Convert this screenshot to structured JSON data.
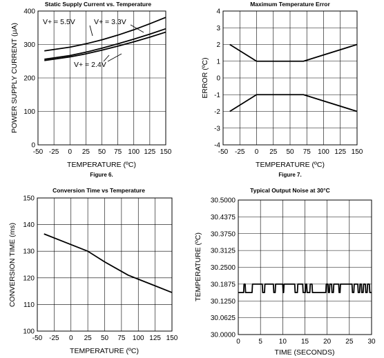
{
  "chart_data": [
    {
      "id": "static-supply-current",
      "type": "line",
      "title": "Static Supply Current vs. Temperature",
      "figure_label": "Figure 6.",
      "xlabel": "TEMPERATURE (ºC)",
      "ylabel": "POWER SUPPLY CURRENT (µA)",
      "xlim": [
        -50,
        150
      ],
      "ylim": [
        0,
        400
      ],
      "xticks": [
        -50,
        -25,
        0,
        25,
        50,
        75,
        100,
        125,
        150
      ],
      "yticks": [
        0,
        100,
        200,
        300,
        400
      ],
      "xtick_labels": [
        "-50",
        "-25",
        "0",
        "25",
        "50",
        "75",
        "100",
        "125",
        "150"
      ],
      "ytick_labels": [
        "0",
        "100",
        "200",
        "300",
        "400"
      ],
      "series": [
        {
          "name": "V+ = 5.5V",
          "x": [
            -40,
            0,
            25,
            50,
            75,
            100,
            125,
            150
          ],
          "y": [
            281,
            292,
            302,
            314,
            328,
            344,
            362,
            381
          ]
        },
        {
          "name": "V+ = 3.3V",
          "x": [
            -40,
            0,
            25,
            50,
            75,
            100,
            125,
            150
          ],
          "y": [
            256,
            267,
            277,
            289,
            302,
            316,
            331,
            347
          ]
        },
        {
          "name": "V+ = 2.4V",
          "x": [
            -40,
            0,
            25,
            50,
            75,
            100,
            125,
            150
          ],
          "y": [
            252,
            263,
            272,
            283,
            295,
            308,
            322,
            337
          ]
        }
      ],
      "grid": true
    },
    {
      "id": "max-temperature-error",
      "type": "line",
      "title": "Maximum Temperature Error",
      "figure_label": "Figure 7.",
      "xlabel": "TEMPERATURE (ºC)",
      "ylabel": "ERROR (ºC)",
      "xlim": [
        -50,
        150
      ],
      "ylim": [
        -4,
        4
      ],
      "xticks": [
        -50,
        -25,
        0,
        25,
        50,
        75,
        100,
        125,
        150
      ],
      "yticks": [
        -4,
        -3,
        -2,
        -1,
        0,
        1,
        2,
        3,
        4
      ],
      "xtick_labels": [
        "-50",
        "-25",
        "0",
        "25",
        "50",
        "75",
        "100",
        "125",
        "150"
      ],
      "ytick_labels": [
        "-4",
        "-3",
        "-2",
        "-1",
        "0",
        "1",
        "2",
        "3",
        "4"
      ],
      "series": [
        {
          "x": [
            -40,
            0,
            70,
            150
          ],
          "y": [
            2,
            1,
            1,
            2
          ]
        },
        {
          "x": [
            -40,
            0,
            70,
            150
          ],
          "y": [
            -2,
            -1,
            -1,
            -2
          ]
        }
      ],
      "grid": true
    },
    {
      "id": "conversion-time",
      "type": "line",
      "title": "Conversion Time vs Temperature",
      "xlabel": "TEMPERATURE (ºC)",
      "ylabel": "CONVERSION TIME (ms)",
      "xlim": [
        -50,
        150
      ],
      "ylim": [
        100,
        150
      ],
      "xticks": [
        -50,
        -25,
        0,
        25,
        50,
        75,
        100,
        125,
        150
      ],
      "yticks": [
        100,
        110,
        120,
        130,
        140,
        150
      ],
      "xtick_labels": [
        "-50",
        "-25",
        "0",
        "25",
        "50",
        "75",
        "100",
        "125",
        "150"
      ],
      "ytick_labels": [
        "100",
        "110",
        "120",
        "130",
        "140",
        "150"
      ],
      "series": [
        {
          "x": [
            -40,
            0,
            25,
            50,
            85,
            100,
            125,
            150
          ],
          "y": [
            136.5,
            132.5,
            130,
            126,
            121,
            119.5,
            117,
            114.5
          ]
        }
      ],
      "grid": true
    },
    {
      "id": "output-noise",
      "type": "line",
      "title": "Typical Output Noise at 30°C",
      "xlabel": "TIME (SECONDS)",
      "ylabel": "TEMPERATURE (ºC)",
      "xlim": [
        0,
        30
      ],
      "ylim": [
        30.0,
        30.5
      ],
      "xticks": [
        0,
        5,
        10,
        15,
        20,
        25,
        30
      ],
      "yticks": [
        30.0,
        30.0625,
        30.125,
        30.1875,
        30.25,
        30.3125,
        30.375,
        30.4375,
        30.5
      ],
      "xtick_labels": [
        "0",
        "5",
        "10",
        "15",
        "20",
        "25",
        "30"
      ],
      "ytick_labels": [
        "30.0000",
        "30.0625",
        "30.1250",
        "30.1875",
        "30.2500",
        "30.3125",
        "30.3750",
        "30.4375",
        "30.5000"
      ],
      "series": [
        {
          "x": [
            0,
            1.2,
            1.3,
            1.55,
            1.65,
            3.1,
            3.2,
            5.4,
            5.5,
            5.9,
            6.0,
            7.9,
            8.0,
            8.3,
            8.4,
            10.0,
            10.1,
            10.2,
            10.3,
            12.7,
            12.8,
            13.3,
            13.4,
            14.5,
            14.6,
            15.1,
            15.2,
            15.4,
            15.5,
            16.1,
            16.2,
            16.6,
            16.7,
            19.7,
            19.8,
            20.2,
            20.3,
            20.5,
            20.6,
            21.0,
            21.1,
            21.4,
            21.5,
            22.6,
            22.7,
            22.9,
            23.0,
            25.6,
            25.7,
            26.0,
            26.1,
            26.9,
            27.0,
            27.3,
            27.4,
            27.7,
            27.8,
            28.1,
            28.2,
            28.6,
            28.7,
            29.0,
            29.1,
            29.5,
            29.6,
            30
          ],
          "y": [
            30.156,
            30.156,
            30.1875,
            30.1875,
            30.156,
            30.156,
            30.1875,
            30.1875,
            30.156,
            30.156,
            30.1875,
            30.1875,
            30.156,
            30.156,
            30.1875,
            30.1875,
            30.156,
            30.156,
            30.1875,
            30.1875,
            30.156,
            30.156,
            30.1875,
            30.1875,
            30.156,
            30.156,
            30.1875,
            30.1875,
            30.156,
            30.156,
            30.1875,
            30.1875,
            30.156,
            30.156,
            30.1875,
            30.1875,
            30.156,
            30.156,
            30.1875,
            30.1875,
            30.156,
            30.156,
            30.1875,
            30.1875,
            30.156,
            30.156,
            30.1875,
            30.1875,
            30.156,
            30.156,
            30.1875,
            30.1875,
            30.156,
            30.156,
            30.1875,
            30.1875,
            30.156,
            30.156,
            30.1875,
            30.1875,
            30.156,
            30.156,
            30.1875,
            30.1875,
            30.156,
            30.156
          ]
        }
      ],
      "grid": true
    }
  ]
}
